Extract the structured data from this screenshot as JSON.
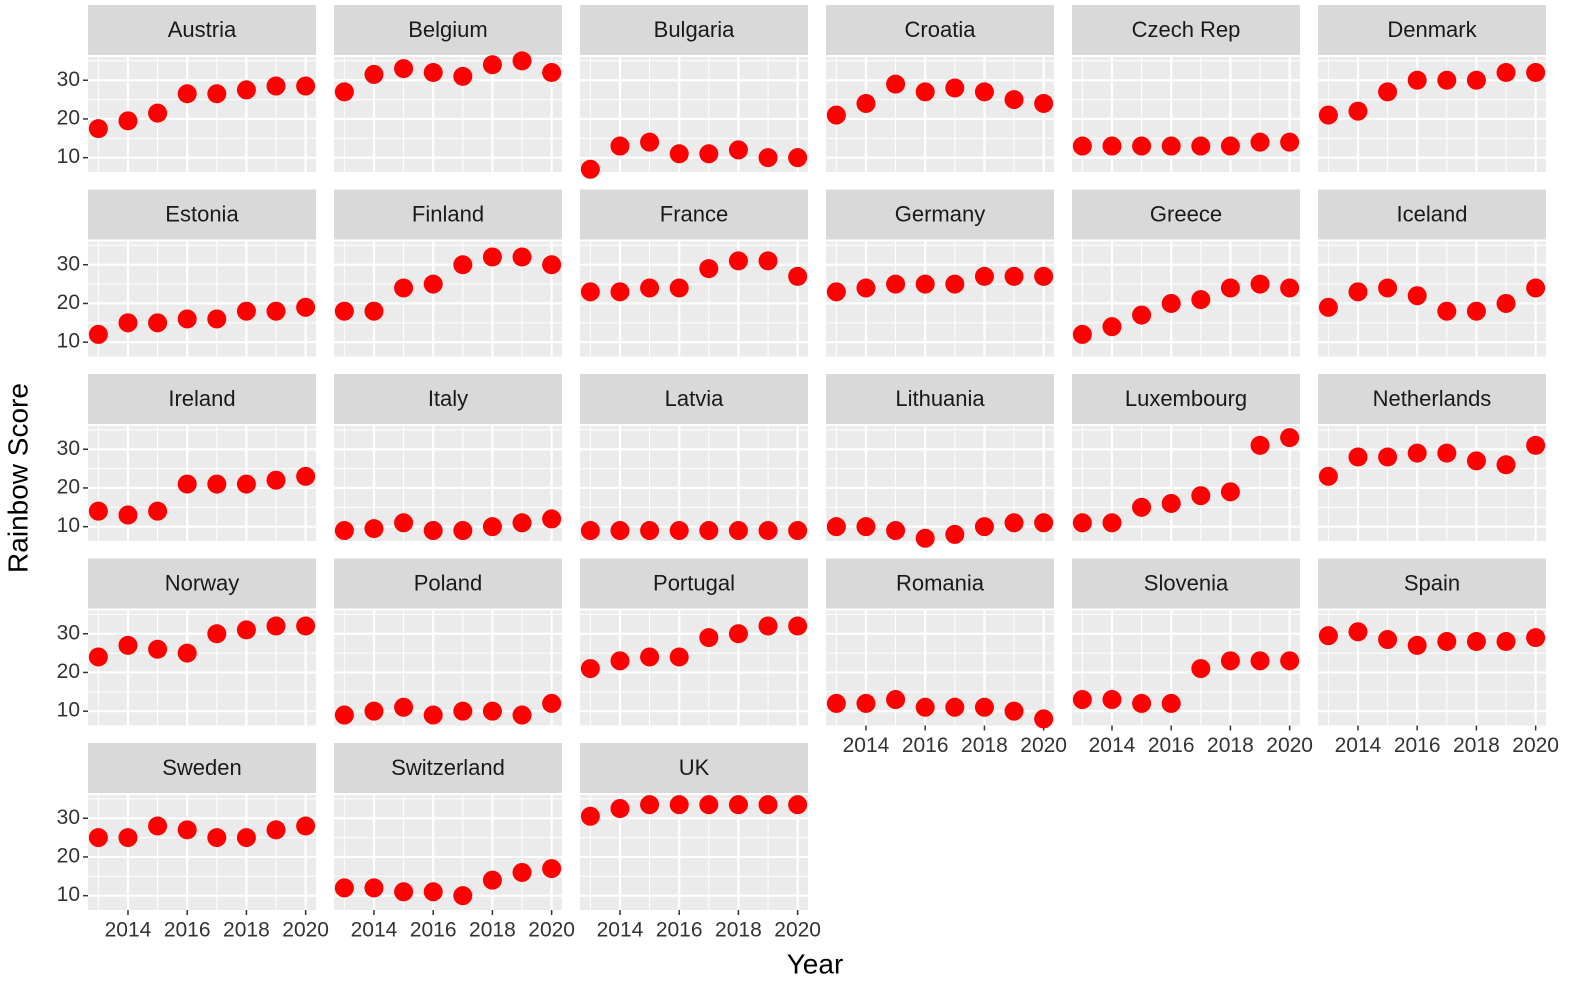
{
  "chart_data": {
    "type": "scatter",
    "x_label": "Year",
    "y_label": "Rainbow Score",
    "color": "#ff0000",
    "x": [
      2013,
      2014,
      2015,
      2016,
      2017,
      2018,
      2019,
      2020
    ],
    "xlim": [
      2012.65,
      2020.35
    ],
    "ylim": [
      6.3,
      36
    ],
    "xticks": [
      2014,
      2016,
      2018,
      2020
    ],
    "yticks": [
      10,
      20,
      30
    ],
    "grid": true,
    "panels": [
      {
        "name": "Austria",
        "values": [
          17.5,
          19.5,
          21.5,
          26.5,
          26.5,
          27.5,
          28.5,
          28.5
        ]
      },
      {
        "name": "Belgium",
        "values": [
          27,
          31.5,
          33,
          32,
          31,
          34,
          35,
          32
        ]
      },
      {
        "name": "Bulgaria",
        "values": [
          7,
          13,
          14,
          11,
          11,
          12,
          10,
          10
        ]
      },
      {
        "name": "Croatia",
        "values": [
          21,
          24,
          29,
          27,
          28,
          27,
          25,
          24
        ]
      },
      {
        "name": "Czech Rep",
        "values": [
          13,
          13,
          13,
          13,
          13,
          13,
          14,
          14
        ]
      },
      {
        "name": "Denmark",
        "values": [
          21,
          22,
          27,
          30,
          30,
          30,
          32,
          32
        ]
      },
      {
        "name": "Estonia",
        "values": [
          12,
          15,
          15,
          16,
          16,
          18,
          18,
          19
        ]
      },
      {
        "name": "Finland",
        "values": [
          18,
          18,
          24,
          25,
          30,
          32,
          32,
          30
        ]
      },
      {
        "name": "France",
        "values": [
          23,
          23,
          24,
          24,
          29,
          31,
          31,
          27
        ]
      },
      {
        "name": "Germany",
        "values": [
          23,
          24,
          25,
          25,
          25,
          27,
          27,
          27
        ]
      },
      {
        "name": "Greece",
        "values": [
          12,
          14,
          17,
          20,
          21,
          24,
          25,
          24
        ]
      },
      {
        "name": "Iceland",
        "values": [
          19,
          23,
          24,
          22,
          18,
          18,
          20,
          24
        ]
      },
      {
        "name": "Ireland",
        "values": [
          14,
          13,
          14,
          21,
          21,
          21,
          22,
          23
        ]
      },
      {
        "name": "Italy",
        "values": [
          9,
          9.5,
          11,
          9,
          9,
          10,
          11,
          12
        ]
      },
      {
        "name": "Latvia",
        "values": [
          9,
          9,
          9,
          9,
          9,
          9,
          9,
          9
        ]
      },
      {
        "name": "Lithuania",
        "values": [
          10,
          10,
          9,
          7,
          8,
          10,
          11,
          11
        ]
      },
      {
        "name": "Luxembourg",
        "values": [
          11,
          11,
          15,
          16,
          18,
          19,
          31,
          33
        ]
      },
      {
        "name": "Netherlands",
        "values": [
          23,
          28,
          28,
          29,
          29,
          27,
          26,
          31
        ]
      },
      {
        "name": "Norway",
        "values": [
          24,
          27,
          26,
          25,
          30,
          31,
          32,
          32
        ]
      },
      {
        "name": "Poland",
        "values": [
          9,
          10,
          11,
          9,
          10,
          10,
          9,
          12
        ]
      },
      {
        "name": "Portugal",
        "values": [
          21,
          23,
          24,
          24,
          29,
          30,
          32,
          32
        ]
      },
      {
        "name": "Romania",
        "values": [
          12,
          12,
          13,
          11,
          11,
          11,
          10,
          8
        ]
      },
      {
        "name": "Slovenia",
        "values": [
          13,
          13,
          12,
          12,
          21,
          23,
          23,
          23
        ]
      },
      {
        "name": "Spain",
        "values": [
          29.5,
          30.5,
          28.5,
          27,
          28,
          28,
          28,
          29
        ]
      },
      {
        "name": "Sweden",
        "values": [
          25,
          25,
          28,
          27,
          25,
          25,
          27,
          28
        ]
      },
      {
        "name": "Switzerland",
        "values": [
          12,
          12,
          11,
          11,
          10,
          14,
          16,
          17
        ]
      },
      {
        "name": "UK",
        "values": [
          30.5,
          32.5,
          33.5,
          33.5,
          33.5,
          33.5,
          33.5,
          33.5
        ]
      }
    ]
  }
}
